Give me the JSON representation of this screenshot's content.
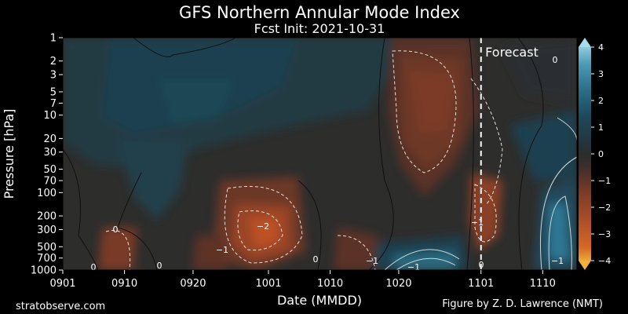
{
  "chart_data": {
    "type": "heatmap",
    "title": "GFS Northern Annular Mode Index",
    "subtitle": "Fcst Init: 2021-10-31",
    "xlabel": "Date (MMDD)",
    "ylabel": "Pressure [hPa]",
    "x_tick_labels": [
      "0901",
      "0910",
      "0920",
      "1001",
      "1010",
      "1020",
      "1101",
      "1110"
    ],
    "y_tick_labels": [
      "1",
      "2",
      "3",
      "5",
      "7",
      "10",
      "20",
      "30",
      "50",
      "70",
      "100",
      "200",
      "300",
      "500",
      "700",
      "1000"
    ],
    "y_scale": "log",
    "y_inverted": true,
    "ylim": [
      1000,
      1
    ],
    "x_range": [
      "0901",
      "1115"
    ],
    "forecast_start": "1101",
    "annotation": "Forecast",
    "colorbar": {
      "ticks": [
        "4",
        "3",
        "2",
        "1",
        "0",
        "−1",
        "−2",
        "−3",
        "−4"
      ],
      "range": [
        -4,
        4
      ],
      "extend": "both",
      "colors": [
        "#e59a1f",
        "#c65a24",
        "#a44a2a",
        "#7c3c26",
        "#513028",
        "#2f2d2b",
        "#24343a",
        "#1f4250",
        "#205466",
        "#2a6c82",
        "#3c8aa3",
        "#5eaac2",
        "#8dc8da"
      ]
    },
    "contour_labels": [
      "0",
      "0",
      "0",
      "0",
      "0",
      "−1",
      "−1",
      "−1",
      "−1",
      "−1",
      "−2",
      "−1",
      "1",
      "0",
      "1",
      "0"
    ],
    "grid": false
  },
  "footer": {
    "left": "stratobserve.com",
    "right": "Figure by Z. D. Lawrence (NMT)"
  }
}
